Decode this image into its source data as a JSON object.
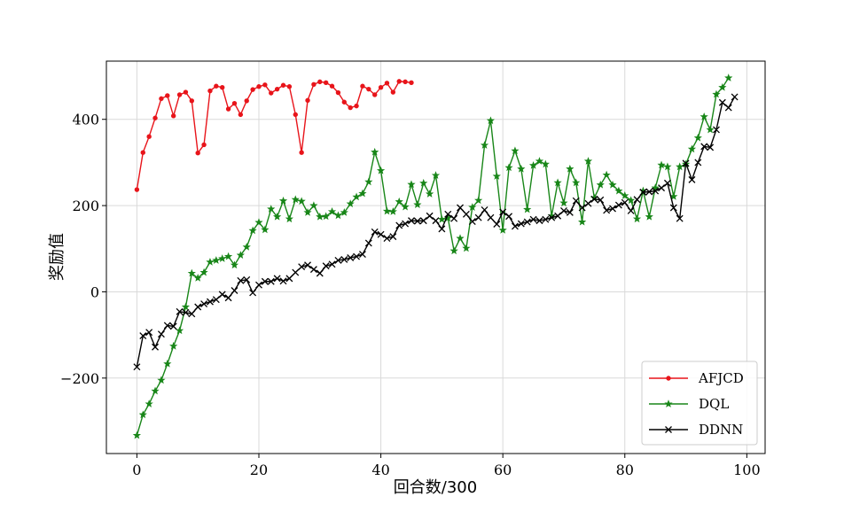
{
  "chart_data": {
    "type": "line",
    "xlabel": "回合数/300",
    "ylabel": "奖励值",
    "xlim": [
      -5,
      103
    ],
    "ylim": [
      -375,
      535
    ],
    "xticks": [
      0,
      20,
      40,
      60,
      80,
      100
    ],
    "yticks": [
      -200,
      0,
      200,
      400
    ],
    "xtick_labels": [
      "0",
      "20",
      "40",
      "60",
      "80",
      "100"
    ],
    "ytick_labels": [
      "−200",
      "0",
      "200",
      "400"
    ],
    "grid": true,
    "legend_position": "lower-right",
    "series": [
      {
        "name": "AFJCD",
        "color": "#e8141a",
        "marker": "dot",
        "x_start": 0,
        "values": [
          237,
          323,
          360,
          403,
          448,
          455,
          408,
          457,
          463,
          443,
          322,
          341,
          466,
          477,
          474,
          424,
          437,
          411,
          443,
          469,
          476,
          480,
          461,
          470,
          479,
          476,
          411,
          323,
          444,
          481,
          487,
          485,
          477,
          462,
          440,
          427,
          431,
          477,
          470,
          457,
          474,
          484,
          463,
          488,
          487,
          485
        ]
      },
      {
        "name": "DQL",
        "color": "#188618",
        "marker": "star",
        "x_start": 0,
        "values": [
          -333,
          -285,
          -260,
          -230,
          -205,
          -167,
          -126,
          -90,
          -35,
          43,
          32,
          45,
          69,
          73,
          77,
          82,
          62,
          85,
          104,
          142,
          161,
          144,
          192,
          174,
          211,
          169,
          214,
          210,
          184,
          200,
          174,
          175,
          186,
          177,
          184,
          204,
          220,
          228,
          255,
          324,
          281,
          187,
          186,
          209,
          197,
          249,
          202,
          252,
          227,
          270,
          168,
          171,
          95,
          124,
          101,
          196,
          212,
          340,
          397,
          268,
          143,
          288,
          327,
          285,
          191,
          293,
          303,
          296,
          176,
          253,
          206,
          285,
          253,
          162,
          303,
          218,
          248,
          271,
          248,
          234,
          223,
          212,
          169,
          234,
          174,
          241,
          294,
          290,
          221,
          290,
          296,
          331,
          357,
          406,
          376,
          458,
          474,
          496
        ]
      },
      {
        "name": "DDNN",
        "color": "#000000",
        "marker": "x",
        "x_start": 0,
        "values": [
          -174,
          -102,
          -94,
          -128,
          -98,
          -78,
          -80,
          -46,
          -48,
          -51,
          -35,
          -28,
          -23,
          -18,
          -6,
          -14,
          3,
          26,
          28,
          -2,
          16,
          24,
          24,
          31,
          25,
          31,
          45,
          58,
          62,
          52,
          43,
          60,
          64,
          73,
          75,
          79,
          82,
          87,
          113,
          139,
          133,
          124,
          128,
          154,
          158,
          165,
          164,
          165,
          176,
          165,
          146,
          180,
          170,
          195,
          180,
          163,
          172,
          190,
          172,
          157,
          185,
          175,
          152,
          158,
          162,
          168,
          165,
          168,
          172,
          176,
          188,
          184,
          211,
          195,
          205,
          215,
          213,
          189,
          193,
          201,
          207,
          188,
          214,
          231,
          232,
          234,
          241,
          252,
          195,
          170,
          298,
          260,
          300,
          337,
          335,
          376,
          439,
          427,
          452
        ]
      }
    ]
  }
}
